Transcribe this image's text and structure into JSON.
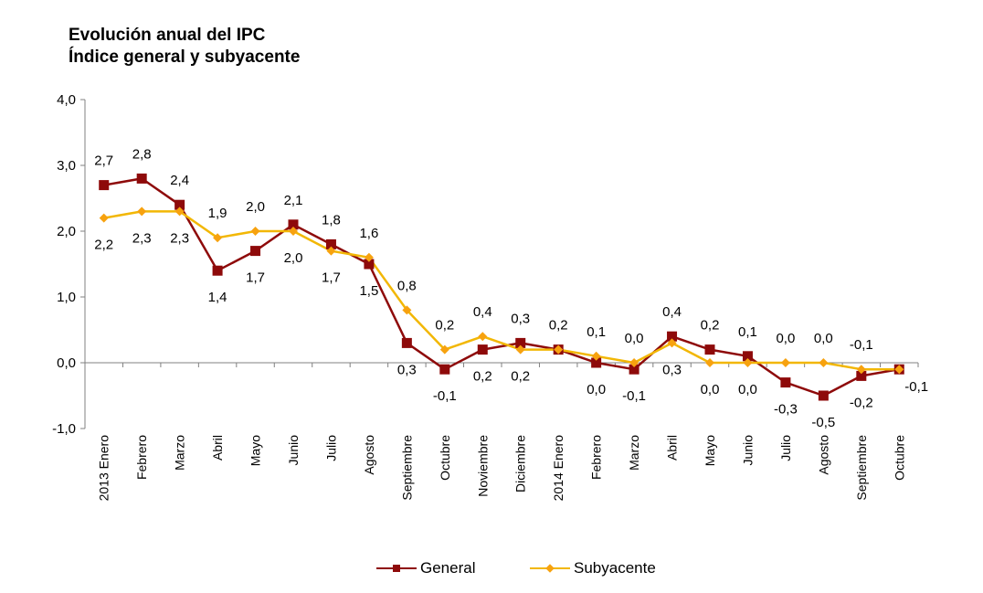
{
  "chart_data": {
    "type": "line",
    "title": "Evolución anual del IPC",
    "subtitle": "Índice general y subyacente",
    "xlabel": "",
    "ylabel": "",
    "ylim": [
      -1.0,
      4.0
    ],
    "yticks": [
      4.0,
      3.0,
      2.0,
      1.0,
      0.0,
      -1.0
    ],
    "ytick_labels": [
      "4,0",
      "3,0",
      "2,0",
      "1,0",
      "0,0",
      "-1,0"
    ],
    "grid": false,
    "legend_position": "bottom",
    "categories": [
      "2013 Enero",
      "Febrero",
      "Marzo",
      "Abril",
      "Mayo",
      "Junio",
      "Julio",
      "Agosto",
      "Septiembre",
      "Octubre",
      "Noviembre",
      "Diciembre",
      "2014 Enero",
      "Febrero",
      "Marzo",
      "Abril",
      "Mayo",
      "Junio",
      "Julio",
      "Agosto",
      "Septiembre",
      "Octubre"
    ],
    "series": [
      {
        "name": "General",
        "color": "#8E0A0A",
        "marker": "square",
        "values": [
          2.7,
          2.8,
          2.4,
          1.4,
          1.7,
          2.1,
          1.8,
          1.5,
          0.3,
          -0.1,
          0.2,
          0.3,
          0.2,
          0.0,
          -0.1,
          0.4,
          0.2,
          0.1,
          -0.3,
          -0.5,
          -0.2,
          -0.1
        ],
        "labels": [
          "2,7",
          "2,8",
          "2,4",
          "1,4",
          "1,7",
          "2,1",
          "1,8",
          "1,5",
          "0,3",
          "-0,1",
          "0,2",
          "0,3",
          "0,2",
          "0,0",
          "-0,1",
          "0,4",
          "0,2",
          "0,1",
          "-0,3",
          "-0,5",
          "-0,2",
          "-0,1"
        ],
        "label_placement": [
          "above",
          "above",
          "above",
          "below",
          "below",
          "above",
          "above",
          "below",
          "below",
          "below",
          "below",
          "above",
          "above",
          "below",
          "below",
          "above",
          "above",
          "above",
          "below",
          "below",
          "below",
          "right"
        ]
      },
      {
        "name": "Subyacente",
        "color": "#F2B705",
        "marker_color": "#F7A20F",
        "marker": "diamond",
        "values": [
          2.2,
          2.3,
          2.3,
          1.9,
          2.0,
          2.0,
          1.7,
          1.6,
          0.8,
          0.2,
          0.4,
          0.2,
          0.2,
          0.1,
          0.0,
          0.3,
          0.0,
          0.0,
          0.0,
          0.0,
          -0.1,
          -0.1
        ],
        "labels": [
          "2,2",
          "2,3",
          "2,3",
          "1,9",
          "2,0",
          "2,0",
          "1,7",
          "1,6",
          "0,8",
          "0,2",
          "0,4",
          "0,2",
          "",
          "0,1",
          "0,0",
          "0,3",
          "0,0",
          "0,0",
          "0,0",
          "0,0",
          "-0,1",
          ""
        ],
        "label_placement": [
          "below",
          "below",
          "below",
          "above",
          "above",
          "below",
          "below",
          "above",
          "above",
          "above",
          "above",
          "below",
          "none",
          "above",
          "above",
          "below",
          "below",
          "below",
          "above",
          "above",
          "above",
          "none"
        ]
      }
    ]
  }
}
